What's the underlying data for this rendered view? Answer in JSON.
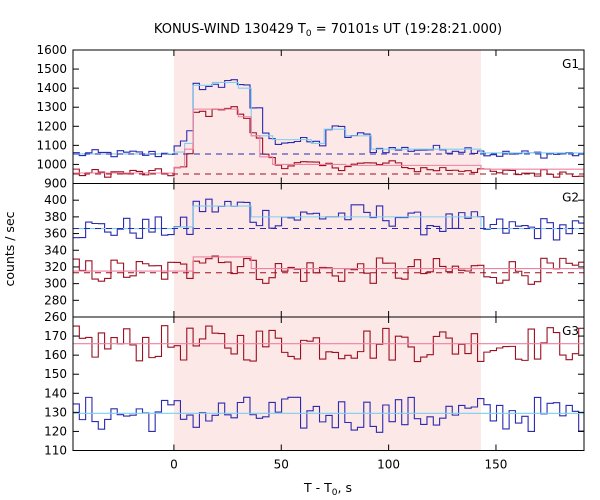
{
  "chart_data": {
    "type": "line",
    "title_main": "KONUS-WIND 130429 T",
    "title_sub": "0",
    "title_rest": " = 70101s UT (19:28:21.000)",
    "xlabel_main": "T - T",
    "xlabel_sub": "0",
    "xlabel_rest": ", s",
    "ylabel": "counts / sec",
    "xlim": [
      -47,
      191
    ],
    "xticks": [
      "0",
      "50",
      "100",
      "150"
    ],
    "xtick_values": [
      0,
      50,
      100,
      150
    ],
    "highlight": {
      "x": [
        0,
        143
      ],
      "color": "#fde8e8"
    },
    "colors": {
      "blue": "#2a2ab0",
      "red": "#9b1020",
      "cyan": "#7ad0f0",
      "pink": "#f080a0"
    },
    "panels": [
      {
        "label": "G1",
        "ylim": [
          900,
          1600
        ],
        "yticks": [
          "900",
          "1000",
          "1100",
          "1200",
          "1300",
          "1400",
          "1500",
          "1600"
        ],
        "ytick_values": [
          900,
          1000,
          1100,
          1200,
          1300,
          1400,
          1500,
          1600
        ],
        "background_levels": [
          {
            "series": "blue",
            "value": 1055
          },
          {
            "series": "red",
            "value": 950
          }
        ],
        "series": [
          {
            "key": "blue",
            "color": "#2a2ab0",
            "base": 1055,
            "x0": -47,
            "dx": 2.944,
            "overrides": [
              [
                -3,
                0,
                1065
              ],
              [
                0,
                5,
                1110
              ],
              [
                5,
                9,
                1160
              ],
              [
                9,
                23,
                1410
              ],
              [
                23,
                30,
                1450
              ],
              [
                30,
                36,
                1400
              ],
              [
                36,
                40,
                1300
              ],
              [
                40,
                46,
                1150
              ],
              [
                46,
                64,
                1120
              ],
              [
                64,
                70,
                1110
              ],
              [
                70,
                80,
                1185
              ],
              [
                80,
                92,
                1150
              ],
              [
                92,
                143,
                1080
              ]
            ],
            "noise": 14
          },
          {
            "key": "red",
            "color": "#9b1020",
            "base": 955,
            "x0": -47,
            "dx": 2.944,
            "overrides": [
              [
                0,
                5,
                980
              ],
              [
                5,
                9,
                1040
              ],
              [
                9,
                22,
                1270
              ],
              [
                22,
                30,
                1305
              ],
              [
                30,
                36,
                1250
              ],
              [
                36,
                40,
                1150
              ],
              [
                40,
                46,
                1040
              ],
              [
                46,
                64,
                1000
              ],
              [
                64,
                80,
                990
              ],
              [
                80,
                110,
                1000
              ],
              [
                110,
                143,
                975
              ]
            ],
            "noise": 14
          },
          {
            "key": "cyan",
            "color": "#7ad0f0",
            "step": [
              [
                -47,
                1055
              ],
              [
                0,
                1065
              ],
              [
                5,
                1110
              ],
              [
                9,
                1415
              ],
              [
                18,
                1430
              ],
              [
                30,
                1400
              ],
              [
                36,
                1150
              ],
              [
                46,
                1130
              ],
              [
                64,
                1110
              ],
              [
                70,
                1185
              ],
              [
                80,
                1150
              ],
              [
                92,
                1080
              ],
              [
                143,
                1060
              ],
              [
                191,
                1060
              ]
            ]
          },
          {
            "key": "pink",
            "color": "#f080a0",
            "step": [
              [
                -47,
                955
              ],
              [
                0,
                985
              ],
              [
                5,
                1080
              ],
              [
                9,
                1290
              ],
              [
                30,
                1250
              ],
              [
                36,
                1150
              ],
              [
                40,
                1040
              ],
              [
                46,
                1000
              ],
              [
                80,
                995
              ],
              [
                143,
                975
              ],
              [
                191,
                975
              ]
            ]
          }
        ]
      },
      {
        "label": "G2",
        "ylim": [
          260,
          420
        ],
        "yticks": [
          "260",
          "280",
          "300",
          "320",
          "340",
          "360",
          "380",
          "400"
        ],
        "ytick_values": [
          260,
          280,
          300,
          320,
          340,
          360,
          380,
          400
        ],
        "background_levels": [
          {
            "series": "blue",
            "value": 366
          },
          {
            "series": "red",
            "value": 313
          }
        ],
        "series": [
          {
            "key": "blue",
            "color": "#2a2ab0",
            "base": 366,
            "x0": -47,
            "dx": 2.944,
            "overrides": [
              [
                9,
                36,
                392
              ],
              [
                36,
                64,
                380
              ],
              [
                64,
                110,
                382
              ],
              [
                110,
                143,
                372
              ]
            ],
            "noise": 9
          },
          {
            "key": "red",
            "color": "#9b1020",
            "base": 315,
            "x0": -47,
            "dx": 2.944,
            "overrides": [
              [
                9,
                22,
                338
              ],
              [
                22,
                36,
                326
              ]
            ],
            "noise": 10
          },
          {
            "key": "cyan",
            "color": "#7ad0f0",
            "step": [
              [
                -47,
                366
              ],
              [
                0,
                368
              ],
              [
                9,
                393
              ],
              [
                36,
                380
              ],
              [
                143,
                366
              ],
              [
                191,
                366
              ]
            ]
          },
          {
            "key": "pink",
            "color": "#f080a0",
            "step": [
              [
                -47,
                315
              ],
              [
                9,
                332
              ],
              [
                36,
                318
              ],
              [
                191,
                316
              ]
            ]
          }
        ]
      },
      {
        "label": "G3",
        "ylim": [
          110,
          180
        ],
        "yticks": [
          "110",
          "120",
          "130",
          "140",
          "150",
          "160",
          "170"
        ],
        "ytick_values": [
          110,
          120,
          130,
          140,
          150,
          160,
          170
        ],
        "background_levels": [],
        "series": [
          {
            "key": "red",
            "color": "#9b1020",
            "base": 166,
            "x0": -47,
            "dx": 2.944,
            "overrides": [],
            "noise": 6
          },
          {
            "key": "blue",
            "color": "#2a2ab0",
            "base": 129,
            "x0": -47,
            "dx": 2.944,
            "overrides": [],
            "noise": 6
          },
          {
            "key": "pink",
            "color": "#f080a0",
            "step": [
              [
                -47,
                166
              ],
              [
                191,
                166
              ]
            ]
          },
          {
            "key": "cyan",
            "color": "#7ad0f0",
            "step": [
              [
                -47,
                129.5
              ],
              [
                191,
                129.5
              ]
            ]
          }
        ]
      }
    ]
  }
}
